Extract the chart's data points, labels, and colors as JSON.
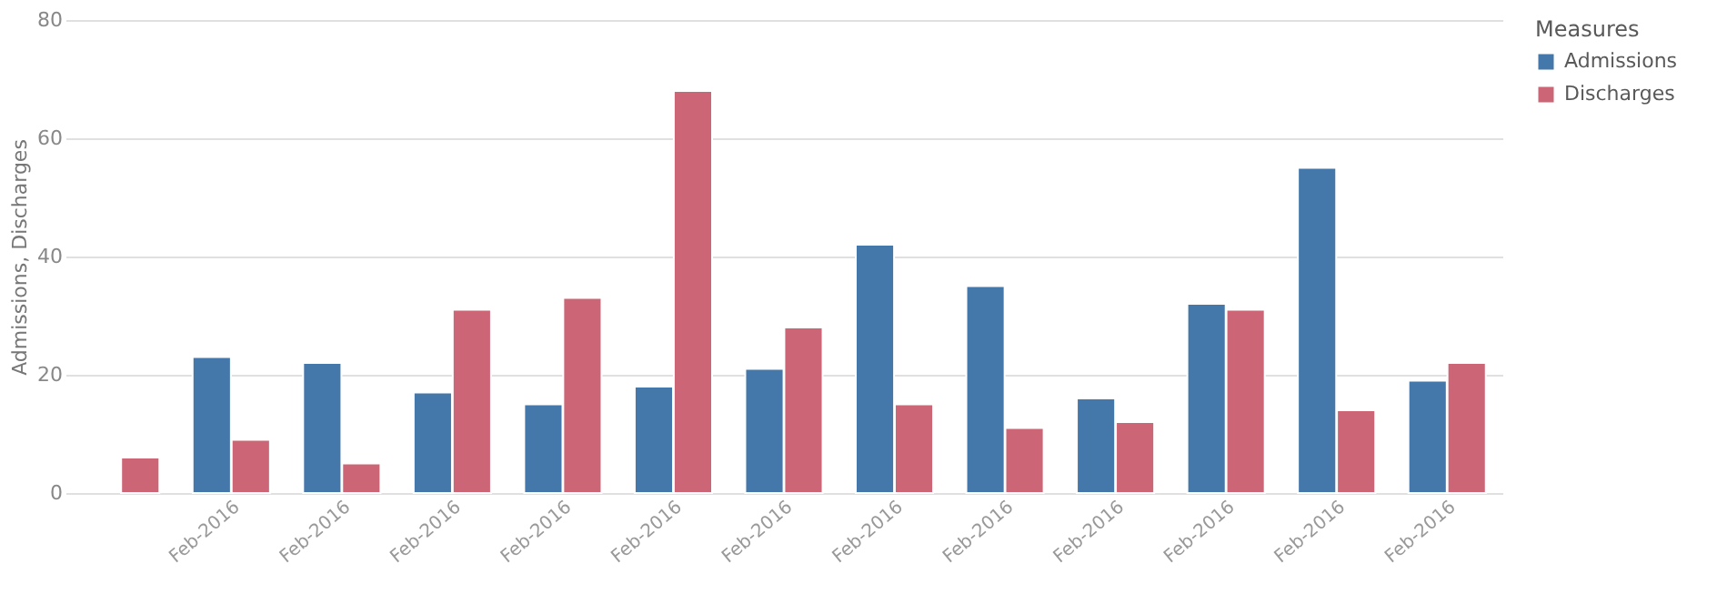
{
  "chart_data": {
    "type": "bar",
    "ylabel": "Admissions, Discharges",
    "legend_title": "Measures",
    "legend": "top right",
    "grid": "y",
    "categories": [
      null,
      "Feb-2016",
      "Feb-2016",
      "Feb-2016",
      "Feb-2016",
      "Feb-2016",
      "Feb-2016",
      "Feb-2016",
      "Feb-2016",
      "Feb-2016",
      "Feb-2016",
      "Feb-2016",
      "Feb-2016"
    ],
    "series": [
      {
        "name": "Admissions",
        "color": "#4477aa",
        "values": [
          null,
          23,
          22,
          17,
          15,
          18,
          21,
          42,
          35,
          16,
          32,
          55,
          19
        ]
      },
      {
        "name": "Discharges",
        "color": "#cc6677",
        "values": [
          6,
          9,
          5,
          31,
          33,
          68,
          28,
          15,
          11,
          12,
          31,
          14,
          22
        ]
      }
    ],
    "ylim": [
      0,
      80
    ],
    "yticks": [
      0,
      20,
      40,
      60,
      80
    ]
  }
}
